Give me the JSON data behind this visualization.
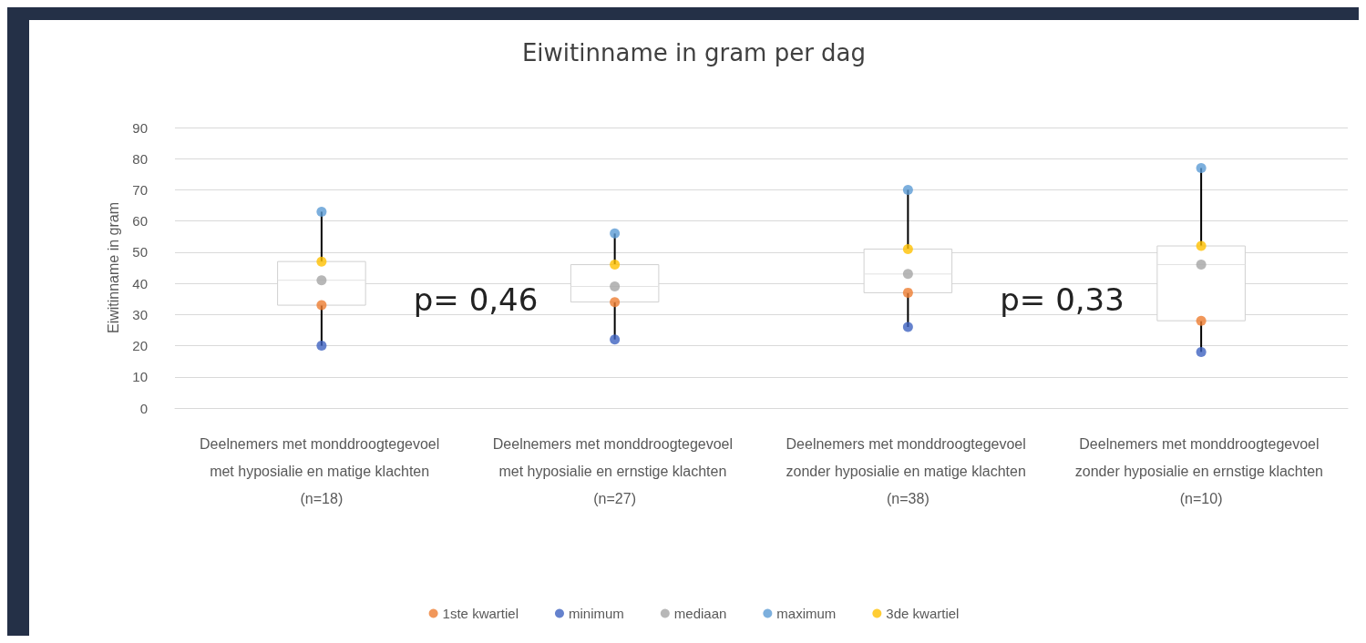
{
  "chart_data": {
    "type": "box",
    "title": "Eiwitinname in gram per dag",
    "ylabel": "Eiwitinname in gram",
    "categories": [
      "Deelnemers met monddroogtegevoel met hyposialie en matige klachten (n=18)",
      "Deelnemers met monddroogtegevoel met hyposialie en ernstige klachten (n=27)",
      "Deelnemers met monddroogtegevoel zonder hyposialie en matige klachten (n=38)",
      "Deelnemers met monddroogtegevoel zonder hyposialie en ernstige klachten (n=10)"
    ],
    "boxes": [
      {
        "low": 20,
        "q1": 33,
        "median": 41,
        "q3": 47,
        "high": 63
      },
      {
        "low": 22,
        "q1": 34,
        "median": 39,
        "q3": 46,
        "high": 56
      },
      {
        "low": 26,
        "q1": 37,
        "median": 43,
        "q3": 51,
        "high": 70
      },
      {
        "low": 18,
        "q1": 28,
        "median": 46,
        "q3": 52,
        "high": 77
      }
    ],
    "series": [
      {
        "name": "1ste kwartiel",
        "color": "#ed7d31",
        "type": "scatter",
        "values": [
          33,
          34,
          37,
          28
        ]
      },
      {
        "name": "minimum",
        "color": "#3f63c0",
        "type": "scatter",
        "values": [
          20,
          22,
          26,
          18
        ]
      },
      {
        "name": "mediaan",
        "color": "#a5a5a5",
        "type": "scatter",
        "values": [
          41,
          39,
          43,
          46
        ]
      },
      {
        "name": "maximum",
        "color": "#5b9bd5",
        "type": "scatter",
        "values": [
          63,
          56,
          70,
          77
        ]
      },
      {
        "name": "3de kwartiel",
        "color": "#ffc000",
        "type": "scatter",
        "values": [
          47,
          46,
          51,
          52
        ]
      }
    ],
    "annotations": [
      "p= 0,46",
      "p= 0,33"
    ],
    "ylim": [
      0,
      90
    ],
    "yticks": [
      0,
      10,
      20,
      30,
      40,
      50,
      60,
      70,
      80,
      90
    ],
    "grid": "y",
    "legend": "bottom",
    "marker": "circle"
  }
}
